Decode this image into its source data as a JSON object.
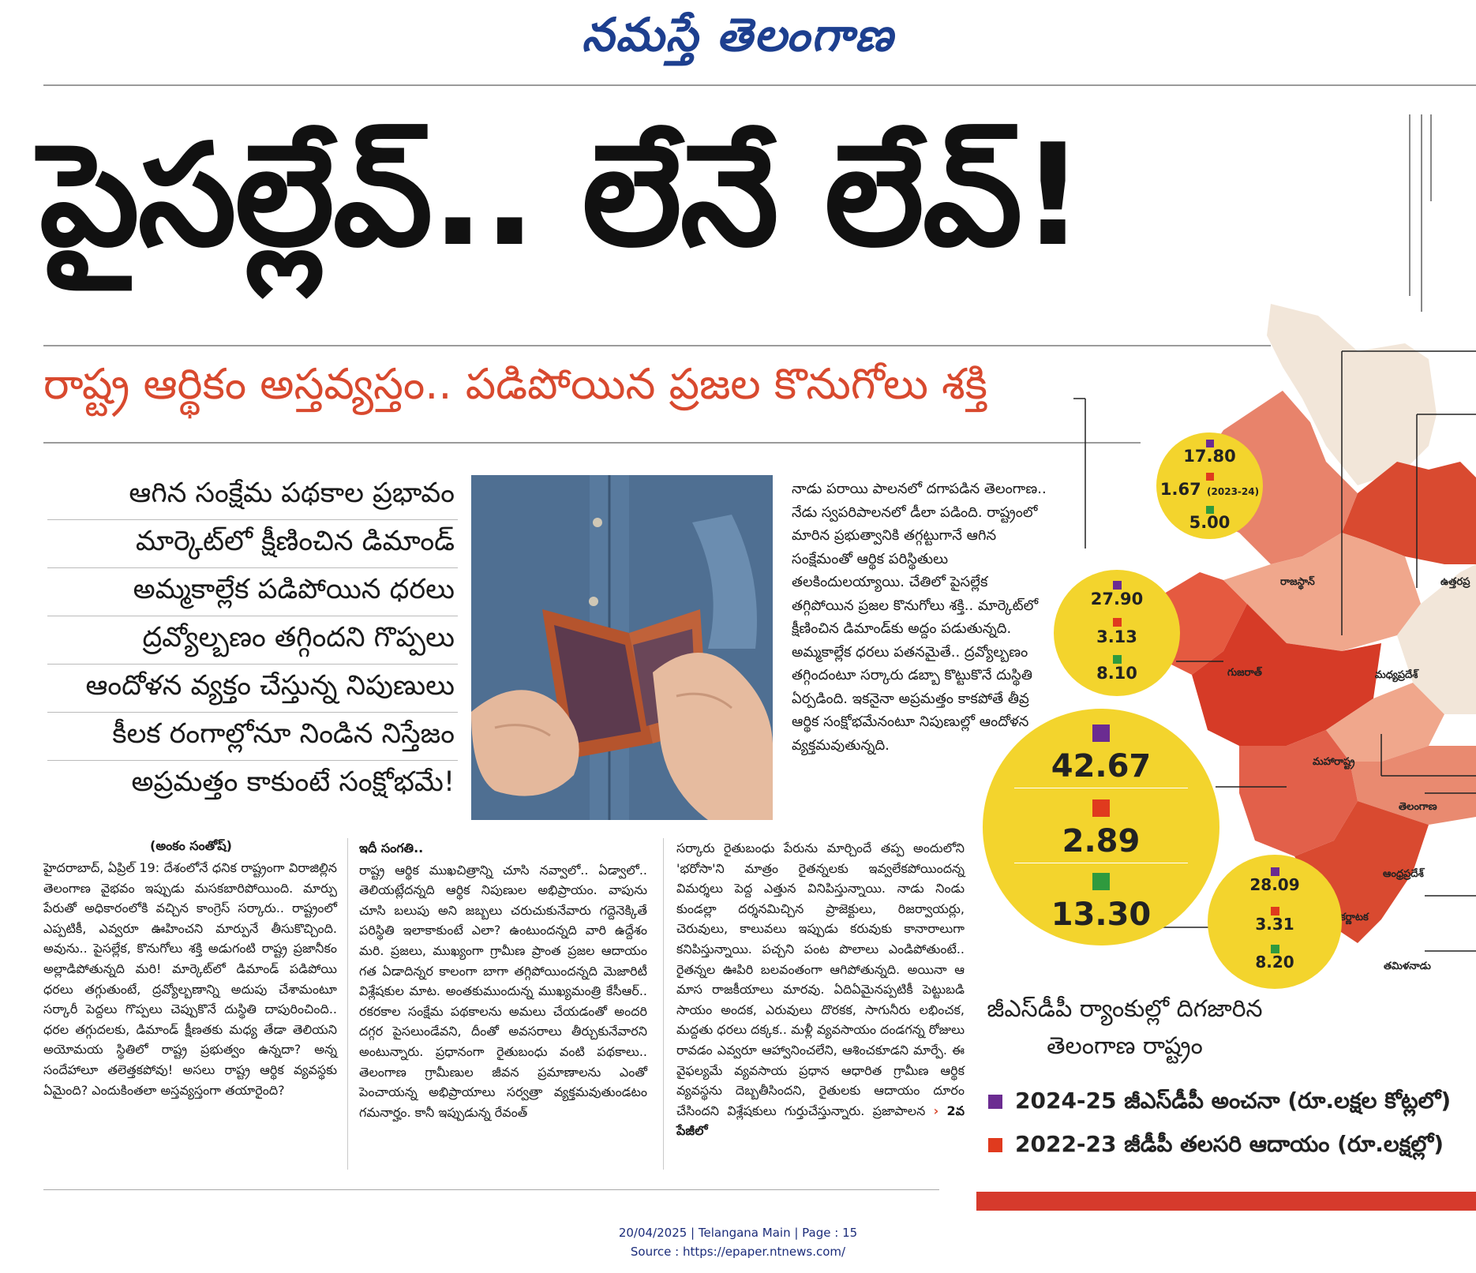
{
  "masthead": "నమస్తే తెలంగాణ",
  "headline": "పైసల్లేవ్.. లేనే లేవ్!",
  "subheadline": "రాష్ట్ర ఆర్థికం అస్తవ్యస్తం.. పడిపోయిన ప్రజల కొనుగోలు శక్తి",
  "bullets": [
    "ఆగిన సంక్షేమ పథకాల ప్రభావం",
    "మార్కెట్‌లో క్షీణించిన డిమాండ్",
    "అమ్మకాల్లేక పడిపోయిన ధరలు",
    "ద్రవ్యోల్బణం తగ్గిందని గొప్పలు",
    "ఆందోళన వ్యక్తం చేస్తున్న నిపుణులు",
    "కీలక రంగాల్లోనూ నిండిన నిస్తేజం",
    "అప్రమత్తం కాకుంటే సంక్షోభమే!"
  ],
  "intro": "నాడు పరాయి పాలనలో దగాపడిన తెలంగాణ.. నేడు స్వపరిపాలనలో డీలా పడింది. రాష్ట్రంలో మారిన ప్రభుత్వానికి తగ్గట్టుగానే ఆగిన సంక్షేమంతో ఆర్థిక పరిస్థితులు తలకిందులయ్యాయి. చేతిలో పైసల్లేక తగ్గిపోయిన ప్రజల కొనుగోలు శక్తి.. మార్కెట్‌లో క్షీణించిన డిమాండ్‌కు అద్దం పడుతున్నది. అమ్మకాల్లేక ధరలు పతనమైతే.. ద్రవ్యోల్బణం తగ్గిందంటూ సర్కారు డబ్బా కొట్టుకొనే దుస్థితి ఏర్పడింది. ఇకనైనా అప్రమత్తం కాకపోతే తీవ్ర ఆర్థిక సంక్షోభమేనంటూ నిపుణుల్లో ఆందోళన వ్యక్తమవుతున్నది.",
  "byline": "(అంకం సంతోష్)",
  "col1": "హైదరాబాద్, ఏప్రిల్ 19: దేశంలోనే ధనిక రాష్ట్రంగా విరాజిల్లిన తెలంగాణ వైభవం ఇప్పుడు మసకబారిపోయింది. మార్పు పేరుతో అధికారంలోకి వచ్చిన కాంగ్రెస్ సర్కారు.. రాష్ట్రంలో ఎప్పటికీ, ఎవ్వరూ ఊహించని మార్పునే తీసుకొచ్చింది. అవును.. పైసల్లేక, కొనుగోలు శక్తి అడుగంటి రాష్ట్ర ప్రజానీకం అల్లాడిపోతున్నది మరి! మార్కెట్‌లో డిమాండ్ పడిపోయి ధరలు తగ్గుతుంటే, ద్రవ్యోల్బణాన్ని అదుపు చేశామంటూ సర్కారీ పెద్దలు గొప్పలు చెప్పుకొనే దుస్థితి దాపురించింది.. ధరల తగ్గుదలకు, డిమాండ్ క్షీణతకు మధ్య తేడా తెలియని అయోమయ స్థితిలో రాష్ట్ర ప్రభుత్వం ఉన్నదా? అన్న సందేహాలూ తలెత్తకపోవు! అసలు రాష్ట్ర ఆర్థిక వ్యవస్థకు ఏమైంది? ఎందుకింతలా అస్తవ్యస్తంగా తయారైంది?",
  "col2_title": "ఇదీ సంగతి..",
  "col2": "రాష్ట్ర ఆర్థిక ముఖచిత్రాన్ని చూసి నవ్వాలో.. ఏడ్వాలో.. తెలియట్లేదన్నది ఆర్థిక నిపుణుల అభిప్రాయం. వాపును చూసి బలుపు అని జబ్బలు చరుచుకునేవారు గద్దెనెక్కితే పరిస్థితి ఇలాకాకుంటే ఎలా? ఉంటుందన్నది వారి ఉద్దేశం మరి. ప్రజలు, ముఖ్యంగా గ్రామీణ ప్రాంత ప్రజల ఆదాయం గత ఏడాదిన్నర కాలంగా బాగా తగ్గిపోయిందన్నది మెజారిటీ విశ్లేషకుల మాట. అంతకుముందున్న ముఖ్యమంత్రి కేసీఆర్.. రకరకాల సంక్షేమ పథకాలను అమలు చేయడంతో అందరి దగ్గర పైసలుండేవని, దీంతో అవసరాలు తీర్చుకునేవారని అంటున్నారు. ప్రధానంగా రైతుబంధు వంటి పథకాలు.. తెలంగాణ గ్రామీణుల జీవన ప్రమాణాలను ఎంతో పెంచాయన్న అభిప్రాయాలు సర్వత్రా వ్యక్తమవుతుండటం గమనార్హం. కానీ ఇప్పుడున్న రేవంత్",
  "col3": "సర్కారు రైతుబంధు పేరును మార్చిందే తప్ప అందులోని 'భరోసా'ని మాత్రం రైతన్నలకు ఇవ్వలేకపోయిందన్న విమర్శలు పెద్ద ఎత్తున వినిపిస్తున్నాయి. నాడు నిండు కుండల్లా దర్శనమిచ్చిన ప్రాజెక్టులు, రిజర్వాయర్లు, చెరువులు, కాలువలు ఇప్పుడు కరువుకు కానారాలుగా కనిపిస్తున్నాయి. పచ్చని పంట పొలాలు ఎండిపోతుంటే.. రైతన్నల ఊపిరి బలవంతంగా ఆగిపోతున్నది. అయినా ఆ మాస రాజకీయాలు మారవు. ఏదిఏమైనప్పటికీ పెట్టుబడి సాయం అందక, ఎరువులు దొరకక, సాగునీరు లభించక, మద్దతు ధరలు దక్కక.. మళ్లీ వ్యవసాయం దండగన్న రోజులు రావడం ఎవ్వరూ ఆహ్వానించలేని, ఆశించకూడని మార్పే. ఈ వైఫల్యమే వ్యవసాయ ప్రధాన ఆధారిత గ్రామీణ ఆర్థిక వ్యవస్థను దెబ్బతీసిందని, రైతులకు ఆదాయం దూరం చేసిందని విశ్లేషకులు గుర్తుచేస్తున్నారు. ప్రజాపాలన",
  "col3_jump": "2వ పేజీలో",
  "map": {
    "states": {
      "rajasthan": "రాజస్థాన్",
      "uttar_pradesh": "ఉత్తరప్ర",
      "gujarat": "గుజరాత్",
      "madhya_pradesh": "మధ్యప్రదేశ్",
      "maharashtra": "మహారాష్ట్ర",
      "telangana": "తెలంగాణ",
      "andhra_pradesh": "ఆంధ్రప్రదేశ్",
      "karnataka": "కర్ణాటక",
      "tamil_nadu": "తమిళనాడు"
    },
    "circles": {
      "rajasthan": {
        "gsdp": "17.80",
        "rank": "1.67",
        "rank_note": "(2023-24)",
        "green": "5.00"
      },
      "gujarat": {
        "gsdp": "27.90",
        "rank": "3.13",
        "green": "8.10"
      },
      "maharashtra": {
        "gsdp": "42.67",
        "rank": "2.89",
        "green": "13.30"
      },
      "karnataka": {
        "gsdp": "28.09",
        "rank": "3.31",
        "green": "8.20"
      }
    },
    "colors": {
      "purple": "#6b2c91",
      "red": "#e03a1e",
      "green": "#2f9a3e",
      "yellow": "#f3d42d"
    }
  },
  "gsdp_caption": "జీఎస్‌డీపీ ర్యాంకుల్లో దిగజారిన తెలంగాణ రాష్ట్రం",
  "legend": [
    {
      "color": "#6b2c91",
      "label": "2024-25 జీఎస్‌డీపీ అంచనా (రూ.లక్షల కోట్లలో)"
    },
    {
      "color": "#e03a1e",
      "label": "2022-23 జీడీపీ తలసరి ఆదాయం (రూ.లక్షల్లో)"
    }
  ],
  "footer": {
    "line1": "20/04/2025 | Telangana Main | Page : 15",
    "line2": "Source : https://epaper.ntnews.com/"
  }
}
